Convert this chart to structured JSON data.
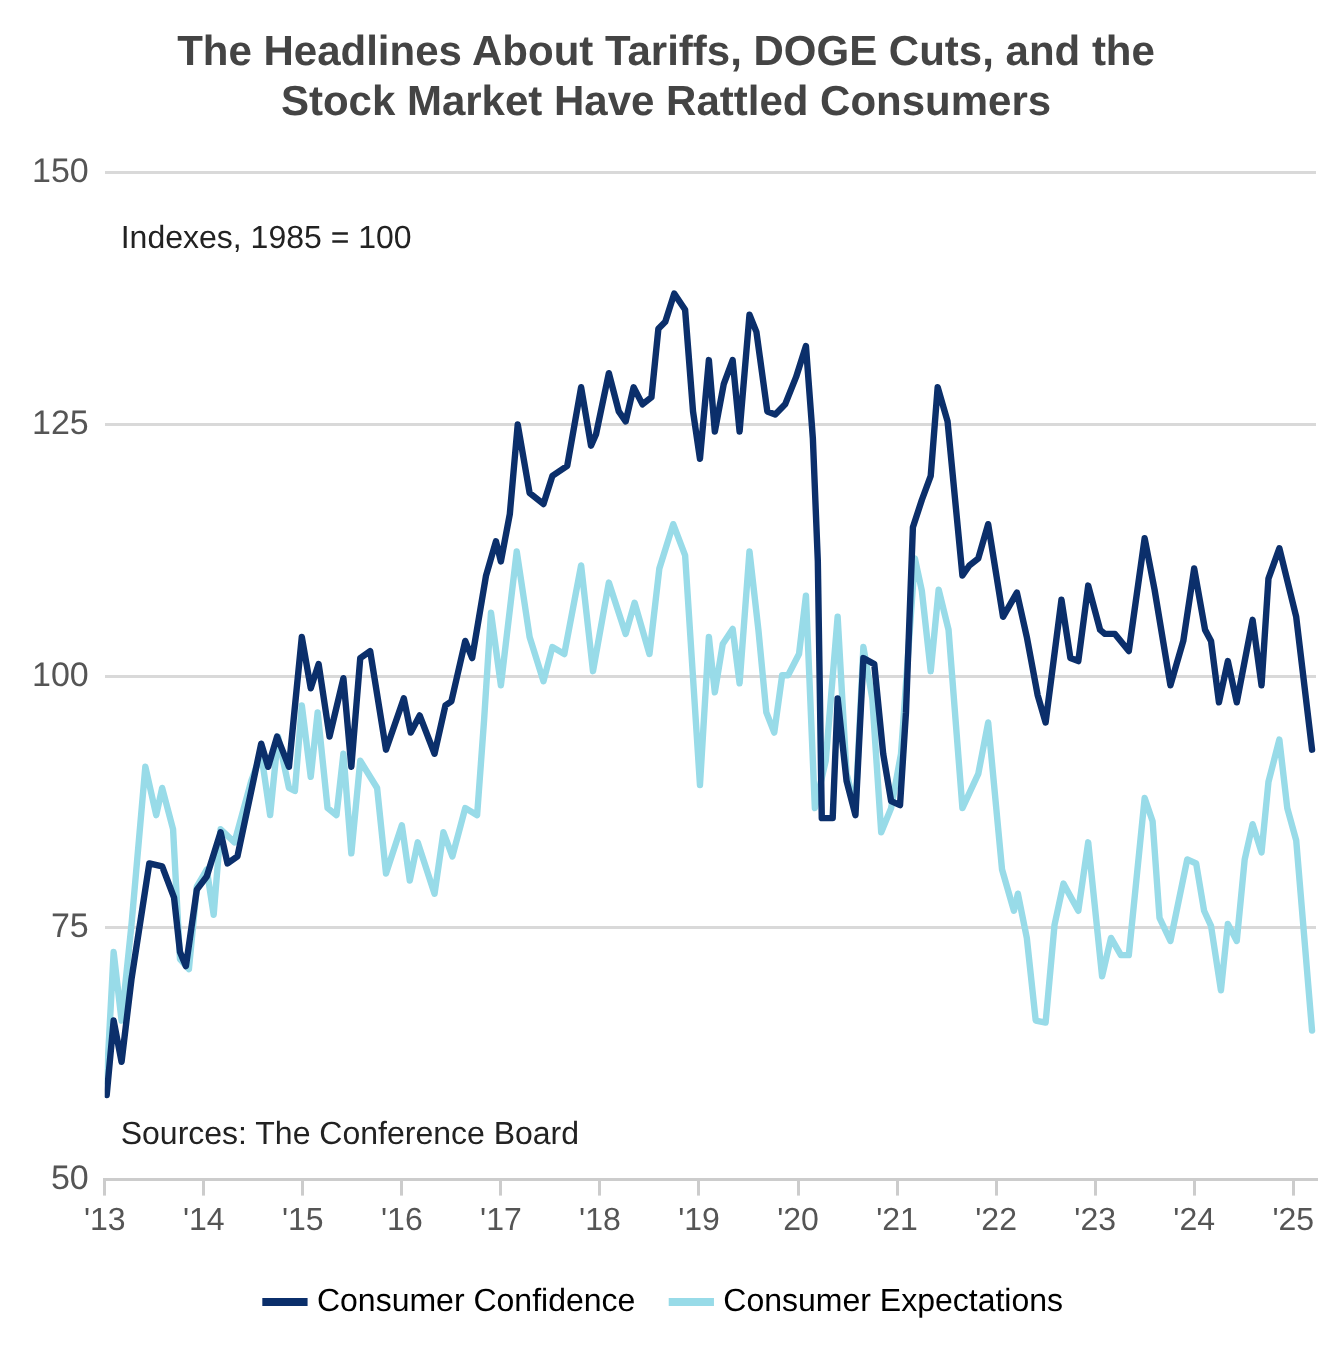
{
  "chart_data": {
    "type": "line",
    "title": "The Headlines About Tariffs, DOGE Cuts, and the Stock Market Have Rattled Consumers",
    "annotations": [
      "Indexes, 1985 = 100",
      "Sources: The Conference Board"
    ],
    "xlim": [
      2013,
      2025.23
    ],
    "xticks": [
      {
        "value": 2013,
        "label": "'13"
      },
      {
        "value": 2014,
        "label": "'14"
      },
      {
        "value": 2015,
        "label": "'15"
      },
      {
        "value": 2016,
        "label": "'16"
      },
      {
        "value": 2017,
        "label": "'17"
      },
      {
        "value": 2018,
        "label": "'18"
      },
      {
        "value": 2019,
        "label": "'19"
      },
      {
        "value": 2020,
        "label": "'20"
      },
      {
        "value": 2021,
        "label": "'21"
      },
      {
        "value": 2022,
        "label": "'22"
      },
      {
        "value": 2023,
        "label": "'23"
      },
      {
        "value": 2024,
        "label": "'24"
      },
      {
        "value": 2025,
        "label": "'25"
      }
    ],
    "ylim": [
      50,
      150
    ],
    "yticks": [
      50,
      75,
      100,
      125,
      150
    ],
    "grid": "y",
    "legend": "bottom",
    "marker": "none",
    "line_style": "solid",
    "series": [
      {
        "name": "Consumer Confidence",
        "color": "#0b2f6b",
        "x": [
          2013.02,
          2013.09,
          2013.17,
          2013.27,
          2013.45,
          2013.58,
          2013.7,
          2013.76,
          2013.82,
          2013.93,
          2014.03,
          2014.17,
          2014.24,
          2014.34,
          2014.58,
          2014.65,
          2014.74,
          2014.86,
          2014.99,
          2015.08,
          2015.16,
          2015.27,
          2015.41,
          2015.49,
          2015.58,
          2015.68,
          2015.84,
          2016.02,
          2016.09,
          2016.18,
          2016.33,
          2016.44,
          2016.5,
          2016.64,
          2016.71,
          2016.85,
          2016.95,
          2017.0,
          2017.09,
          2017.17,
          2017.29,
          2017.43,
          2017.52,
          2017.67,
          2017.81,
          2017.91,
          2017.96,
          2018.09,
          2018.19,
          2018.26,
          2018.34,
          2018.43,
          2018.52,
          2018.59,
          2018.66,
          2018.75,
          2018.86,
          2018.94,
          2019.01,
          2019.1,
          2019.16,
          2019.25,
          2019.34,
          2019.41,
          2019.51,
          2019.58,
          2019.69,
          2019.77,
          2019.87,
          2019.98,
          2020.08,
          2020.15,
          2020.2,
          2020.24,
          2020.35,
          2020.4,
          2020.49,
          2020.58,
          2020.66,
          2020.77,
          2020.86,
          2020.94,
          2021.03,
          2021.09,
          2021.16,
          2021.25,
          2021.34,
          2021.41,
          2021.51,
          2021.66,
          2021.73,
          2021.82,
          2021.92,
          2022.07,
          2022.21,
          2022.31,
          2022.42,
          2022.5,
          2022.66,
          2022.75,
          2022.83,
          2022.93,
          2023.05,
          2023.1,
          2023.2,
          2023.34,
          2023.5,
          2023.6,
          2023.76,
          2023.89,
          2024.0,
          2024.11,
          2024.17,
          2024.25,
          2024.34,
          2024.43,
          2024.59,
          2024.68,
          2024.75,
          2024.86,
          2025.03,
          2025.19
        ],
        "values": [
          58.4,
          65.8,
          61.7,
          69.9,
          81.4,
          81.1,
          78,
          72.6,
          71.2,
          78.8,
          80.1,
          84.5,
          81.4,
          82.1,
          93.3,
          91,
          94,
          91,
          103.9,
          98.8,
          101.2,
          94,
          99.8,
          91,
          101.8,
          102.5,
          92.7,
          97.8,
          94.4,
          96.1,
          92.3,
          97.1,
          97.5,
          103.5,
          101.8,
          110,
          113.4,
          111.4,
          116.1,
          125,
          118.2,
          117.1,
          119.9,
          120.9,
          128.7,
          122.9,
          124,
          130.1,
          126.3,
          125.3,
          128.7,
          127,
          127.7,
          134.5,
          135.2,
          138,
          136.4,
          126.3,
          121.6,
          131.4,
          124.3,
          129,
          131.4,
          124.3,
          135.9,
          134.2,
          126.3,
          126,
          127,
          129.7,
          132.8,
          123.6,
          111.4,
          85.9,
          85.9,
          97.8,
          89.6,
          86.2,
          101.8,
          101.2,
          92.3,
          87.6,
          87.2,
          96.4,
          114.8,
          117.5,
          119.9,
          128.7,
          125.3,
          110,
          111,
          111.7,
          115.1,
          105.9,
          108.3,
          103.9,
          98.1,
          95.4,
          107.6,
          101.8,
          101.5,
          109,
          104.6,
          104.2,
          104.2,
          102.5,
          113.7,
          108.6,
          99.1,
          103.5,
          110.7,
          104.6,
          103.5,
          97.4,
          101.5,
          97.4,
          105.6,
          99.1,
          109.7,
          112.7,
          105.9,
          92.7
        ]
      },
      {
        "name": "Consumer Expectations",
        "color": "#98dbe8",
        "x": [
          2013.02,
          2013.09,
          2013.17,
          2013.27,
          2013.41,
          2013.52,
          2013.58,
          2013.69,
          2013.76,
          2013.85,
          2013.93,
          2014.03,
          2014.1,
          2014.17,
          2014.31,
          2014.48,
          2014.58,
          2014.67,
          2014.75,
          2014.86,
          2014.92,
          2014.99,
          2015.08,
          2015.15,
          2015.25,
          2015.34,
          2015.41,
          2015.49,
          2015.58,
          2015.75,
          2015.84,
          2016.0,
          2016.08,
          2016.16,
          2016.33,
          2016.42,
          2016.51,
          2016.64,
          2016.76,
          2016.83,
          2016.9,
          2017.0,
          2017.16,
          2017.29,
          2017.43,
          2017.52,
          2017.64,
          2017.81,
          2017.93,
          2018.09,
          2018.26,
          2018.35,
          2018.5,
          2018.6,
          2018.74,
          2018.86,
          2019.01,
          2019.1,
          2019.16,
          2019.24,
          2019.34,
          2019.41,
          2019.51,
          2019.6,
          2019.68,
          2019.76,
          2019.84,
          2019.9,
          2020.01,
          2020.08,
          2020.17,
          2020.28,
          2020.4,
          2020.49,
          2020.58,
          2020.66,
          2020.75,
          2020.84,
          2020.94,
          2021.04,
          2021.18,
          2021.25,
          2021.34,
          2021.42,
          2021.52,
          2021.66,
          2021.82,
          2021.92,
          2022.06,
          2022.18,
          2022.22,
          2022.31,
          2022.4,
          2022.5,
          2022.59,
          2022.68,
          2022.83,
          2022.93,
          2023.07,
          2023.16,
          2023.26,
          2023.34,
          2023.5,
          2023.58,
          2023.65,
          2023.76,
          2023.93,
          2024.02,
          2024.1,
          2024.17,
          2024.27,
          2024.34,
          2024.43,
          2024.51,
          2024.59,
          2024.68,
          2024.75,
          2024.86,
          2024.94,
          2025.03,
          2025.19
        ],
        "values": [
          59.7,
          72.6,
          65.8,
          75.3,
          91,
          86.2,
          88.9,
          84.8,
          71.9,
          70.9,
          79.1,
          80.8,
          76.3,
          84.8,
          83.5,
          89.6,
          92.3,
          86.2,
          94,
          88.9,
          88.6,
          97.1,
          90,
          96.4,
          86.9,
          86.2,
          92.3,
          82.4,
          91.6,
          88.9,
          80.4,
          85.2,
          79.7,
          83.5,
          78.4,
          84.5,
          82.1,
          86.9,
          86.2,
          95.6,
          106.3,
          99.1,
          112.4,
          103.9,
          99.5,
          102.9,
          102.2,
          111,
          100.5,
          109.3,
          104.2,
          107.3,
          102.2,
          110.7,
          115.1,
          112,
          89.2,
          103.9,
          98.4,
          103.2,
          104.7,
          99.3,
          112.4,
          104.6,
          96.4,
          94.4,
          100.1,
          100.1,
          102.2,
          108,
          86.9,
          91.6,
          105.9,
          90.3,
          86.9,
          102.9,
          97.8,
          84.5,
          86.9,
          92.3,
          111.7,
          108.5,
          100.5,
          108.6,
          104.6,
          86.9,
          90.3,
          95.4,
          80.8,
          76.7,
          78.4,
          74,
          65.8,
          65.6,
          75.3,
          79.4,
          76.7,
          83.5,
          70.2,
          74,
          72.3,
          72.3,
          87.9,
          85.6,
          76,
          73.7,
          81.8,
          81.4,
          76.7,
          75.2,
          68.8,
          75.4,
          73.7,
          81.8,
          85.3,
          82.5,
          89.5,
          93.7,
          86.9,
          83.7,
          64.8
        ]
      }
    ]
  }
}
